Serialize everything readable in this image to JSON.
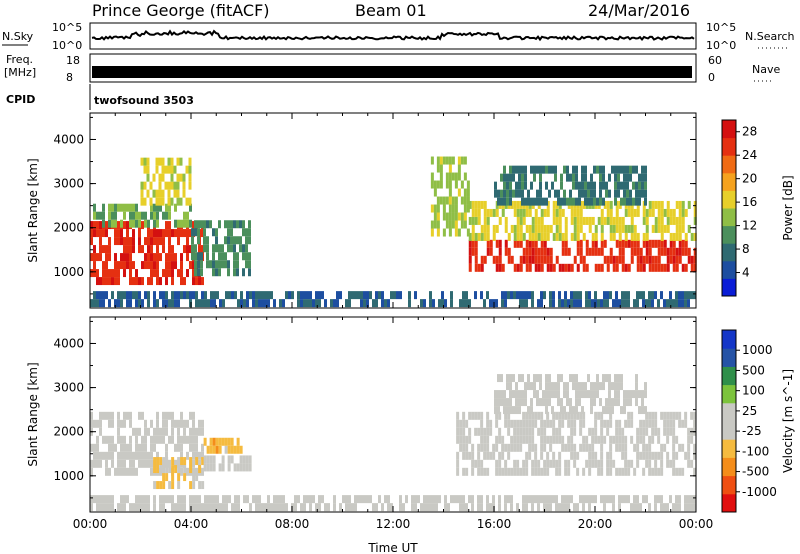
{
  "header": {
    "station": "Prince George (fitACF)",
    "beam": "Beam 01",
    "date": "24/Mar/2016"
  },
  "strip_panels": {
    "nsky": {
      "label": "N.Sky",
      "ticks": [
        "10^5",
        "10^0"
      ]
    },
    "nsearch": {
      "label": "N.Search",
      "ticks": [
        "10^5",
        "10^0"
      ]
    },
    "freq": {
      "label": "Freq.",
      "unit": "[MHz]",
      "ticks": [
        "18",
        "8"
      ]
    },
    "nave": {
      "label": "Nave",
      "ticks": [
        "60",
        "0"
      ]
    },
    "cpid": {
      "label": "CPID",
      "value": "twofsound 3503"
    }
  },
  "colors": {
    "power": [
      "#0a1dd6",
      "#1d4ea0",
      "#2f6a72",
      "#4b8f5c",
      "#8fbe46",
      "#e7cf2a",
      "#f5a21e",
      "#f06b14",
      "#e53011",
      "#d41010"
    ],
    "velocity": [
      "#e10f0f",
      "#ef4f12",
      "#f48d1a",
      "#f5bb3f",
      "#c9c9c4",
      "#c9c9c4",
      "#7cc33c",
      "#2f8f4a",
      "#2553a6",
      "#1436c8"
    ]
  },
  "chart_data": [
    {
      "type": "heatmap",
      "title": "",
      "xlabel": "Time UT",
      "ylabel": "Slant Range [km]",
      "xlim": [
        0,
        24
      ],
      "ylim": [
        180,
        4600
      ],
      "xticks": [
        "00:00",
        "04:00",
        "08:00",
        "12:00",
        "16:00",
        "20:00",
        "00:00"
      ],
      "yticks": [
        "1000",
        "2000",
        "3000",
        "4000"
      ],
      "colorbar": {
        "label": "Power [dB]",
        "ticks": [
          "4",
          "8",
          "12",
          "16",
          "20",
          "24",
          "28"
        ],
        "range": [
          0,
          30
        ]
      },
      "echo_regions": [
        {
          "t_start": 0.0,
          "t_end": 4.5,
          "range_low": 700,
          "range_high": 2000,
          "value": 26
        },
        {
          "t_start": 0.0,
          "t_end": 4.0,
          "range_low": 2000,
          "range_high": 2400,
          "value": 12
        },
        {
          "t_start": 2.0,
          "t_end": 4.0,
          "range_low": 2500,
          "range_high": 3500,
          "value": 16
        },
        {
          "t_start": 4.0,
          "t_end": 6.3,
          "range_low": 900,
          "range_high": 2000,
          "value": 10
        },
        {
          "t_start": 0.0,
          "t_end": 24.0,
          "range_low": 200,
          "range_high": 500,
          "value": 6
        },
        {
          "t_start": 13.5,
          "t_end": 15.0,
          "range_low": 1800,
          "range_high": 3500,
          "value": 14
        },
        {
          "t_start": 15.0,
          "t_end": 24.0,
          "range_low": 1000,
          "range_high": 1700,
          "value": 26
        },
        {
          "t_start": 15.0,
          "t_end": 24.0,
          "range_low": 1700,
          "range_high": 2500,
          "value": 16
        },
        {
          "t_start": 16.0,
          "t_end": 22.0,
          "range_low": 2500,
          "range_high": 3300,
          "value": 8
        }
      ]
    },
    {
      "type": "heatmap",
      "title": "",
      "xlabel": "Time UT",
      "ylabel": "Slant Range [km]",
      "xlim": [
        0,
        24
      ],
      "ylim": [
        180,
        4600
      ],
      "xticks": [
        "00:00",
        "04:00",
        "08:00",
        "12:00",
        "16:00",
        "20:00",
        "00:00"
      ],
      "yticks": [
        "1000",
        "2000",
        "3000",
        "4000"
      ],
      "colorbar": {
        "label": "Velocity [m s^-1]",
        "ticks": [
          "1000",
          "500",
          "100",
          "25",
          "-25",
          "-100",
          "-500",
          "-1000"
        ],
        "range": [
          -1000,
          1000
        ]
      },
      "echo_regions": [
        {
          "t_start": 0.0,
          "t_end": 4.5,
          "range_low": 1000,
          "range_high": 2400,
          "value": 0
        },
        {
          "t_start": 2.5,
          "t_end": 4.5,
          "range_low": 700,
          "range_high": 1300,
          "value": -200
        },
        {
          "t_start": 4.5,
          "t_end": 6.3,
          "range_low": 1100,
          "range_high": 1400,
          "value": 50
        },
        {
          "t_start": 4.5,
          "t_end": 6.0,
          "range_low": 1500,
          "range_high": 1800,
          "value": -300
        },
        {
          "t_start": 0.0,
          "t_end": 24.0,
          "range_low": 200,
          "range_high": 500,
          "value": -50
        },
        {
          "t_start": 14.5,
          "t_end": 24.0,
          "range_low": 1000,
          "range_high": 2400,
          "value": 0
        },
        {
          "t_start": 16.0,
          "t_end": 22.0,
          "range_low": 2400,
          "range_high": 3200,
          "value": 0
        }
      ]
    }
  ]
}
